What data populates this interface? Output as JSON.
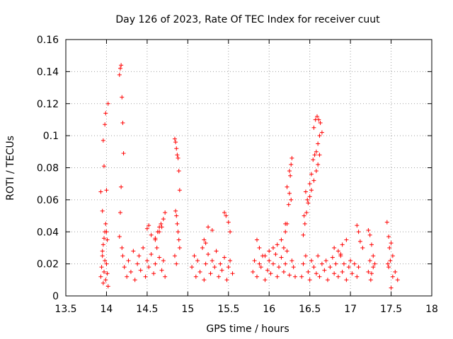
{
  "chart_data": {
    "type": "scatter",
    "title": "Day 126 of 2023, Rate Of TEC Index for receiver cuut",
    "xlabel": "GPS time / hours",
    "ylabel": "ROTI / TECUs",
    "xlim": [
      13.5,
      18
    ],
    "ylim": [
      0,
      0.16
    ],
    "xticks": [
      "13.5",
      "14",
      "14.5",
      "15",
      "15.5",
      "16",
      "16.5",
      "17",
      "17.5",
      "18"
    ],
    "yticks": [
      "0",
      "0.02",
      "0.04",
      "0.06",
      "0.08",
      "0.1",
      "0.12",
      "0.14",
      "0.16"
    ],
    "grid": true,
    "marker": "plus",
    "color": "#ff0000",
    "series": [
      {
        "name": "ROTI",
        "x": [
          13.93,
          13.94,
          13.95,
          13.96,
          13.97,
          13.98,
          13.99,
          14.0,
          14.01,
          14.02,
          13.95,
          13.96,
          13.97,
          13.98,
          13.99,
          14.0,
          14.01,
          13.93,
          13.95,
          14.0,
          13.97,
          13.96,
          13.98,
          13.99,
          14.02,
          14.18,
          14.17,
          14.16,
          14.19,
          14.2,
          14.21,
          14.18,
          14.17,
          14.16,
          14.19,
          14.2,
          14.22,
          14.25,
          14.27,
          14.3,
          14.33,
          14.35,
          14.38,
          14.4,
          14.42,
          14.45,
          14.48,
          14.5,
          14.52,
          14.55,
          14.58,
          14.6,
          14.62,
          14.65,
          14.68,
          14.7,
          14.72,
          14.6,
          14.63,
          14.65,
          14.67,
          14.7,
          14.72,
          14.5,
          14.52,
          14.55,
          14.6,
          14.65,
          14.68,
          14.84,
          14.85,
          14.86,
          14.87,
          14.88,
          14.89,
          14.9,
          14.85,
          14.86,
          14.87,
          14.88,
          14.89,
          14.9,
          14.84,
          14.86,
          15.05,
          15.08,
          15.1,
          15.12,
          15.15,
          15.18,
          15.2,
          15.22,
          15.25,
          15.28,
          15.3,
          15.33,
          15.35,
          15.38,
          15.4,
          15.42,
          15.45,
          15.48,
          15.5,
          15.52,
          15.55,
          15.2,
          15.22,
          15.25,
          15.3,
          15.45,
          15.47,
          15.5,
          15.52,
          15.8,
          15.82,
          15.85,
          15.88,
          15.9,
          15.92,
          15.95,
          15.98,
          16.0,
          16.02,
          16.05,
          16.08,
          16.1,
          16.12,
          16.15,
          16.18,
          16.2,
          16.22,
          16.25,
          16.28,
          16.3,
          16.32,
          15.85,
          15.88,
          15.95,
          16.0,
          16.05,
          16.1,
          16.15,
          16.2,
          16.22,
          16.24,
          16.25,
          16.26,
          16.27,
          16.28,
          16.22,
          16.25,
          16.27,
          16.18,
          16.2,
          16.4,
          16.42,
          16.45,
          16.48,
          16.5,
          16.52,
          16.55,
          16.58,
          16.6,
          16.62,
          16.65,
          16.68,
          16.7,
          16.72,
          16.75,
          16.78,
          16.8,
          16.82,
          16.85,
          16.88,
          16.9,
          16.92,
          16.95,
          16.98,
          17.0,
          17.02,
          17.05,
          17.08,
          17.1,
          16.43,
          16.45,
          16.47,
          16.5,
          16.52,
          16.54,
          16.56,
          16.58,
          16.6,
          16.62,
          16.55,
          16.57,
          16.59,
          16.61,
          16.63,
          16.65,
          16.42,
          16.44,
          16.46,
          16.48,
          16.5,
          16.52,
          16.55,
          16.58,
          16.6,
          16.62,
          16.8,
          16.85,
          16.88,
          16.9,
          16.95,
          17.08,
          17.1,
          17.12,
          17.15,
          17.22,
          17.24,
          17.26,
          17.28,
          17.3,
          17.22,
          17.25,
          17.28,
          17.24,
          17.26,
          17.45,
          17.47,
          17.5,
          17.52,
          17.55,
          17.58,
          17.46,
          17.48,
          17.5,
          17.52,
          17.47,
          17.49
        ],
        "y": [
          0.012,
          0.018,
          0.025,
          0.008,
          0.015,
          0.022,
          0.01,
          0.02,
          0.014,
          0.006,
          0.028,
          0.032,
          0.036,
          0.04,
          0.045,
          0.04,
          0.035,
          0.065,
          0.053,
          0.066,
          0.081,
          0.097,
          0.107,
          0.114,
          0.12,
          0.144,
          0.142,
          0.138,
          0.124,
          0.108,
          0.089,
          0.068,
          0.052,
          0.037,
          0.03,
          0.025,
          0.018,
          0.012,
          0.022,
          0.015,
          0.028,
          0.01,
          0.02,
          0.025,
          0.016,
          0.03,
          0.012,
          0.022,
          0.018,
          0.026,
          0.014,
          0.02,
          0.03,
          0.024,
          0.016,
          0.022,
          0.012,
          0.035,
          0.04,
          0.043,
          0.045,
          0.048,
          0.052,
          0.042,
          0.044,
          0.038,
          0.036,
          0.04,
          0.043,
          0.098,
          0.096,
          0.092,
          0.088,
          0.086,
          0.078,
          0.066,
          0.053,
          0.05,
          0.045,
          0.04,
          0.035,
          0.03,
          0.025,
          0.02,
          0.018,
          0.025,
          0.012,
          0.022,
          0.015,
          0.03,
          0.01,
          0.02,
          0.026,
          0.014,
          0.022,
          0.018,
          0.028,
          0.012,
          0.02,
          0.016,
          0.024,
          0.01,
          0.018,
          0.022,
          0.014,
          0.035,
          0.033,
          0.043,
          0.041,
          0.052,
          0.05,
          0.046,
          0.04,
          0.015,
          0.022,
          0.012,
          0.02,
          0.018,
          0.025,
          0.01,
          0.016,
          0.022,
          0.014,
          0.02,
          0.026,
          0.012,
          0.018,
          0.024,
          0.015,
          0.02,
          0.028,
          0.013,
          0.022,
          0.018,
          0.012,
          0.035,
          0.03,
          0.025,
          0.028,
          0.03,
          0.032,
          0.035,
          0.04,
          0.045,
          0.057,
          0.064,
          0.075,
          0.082,
          0.086,
          0.068,
          0.078,
          0.06,
          0.03,
          0.045,
          0.012,
          0.02,
          0.025,
          0.015,
          0.01,
          0.022,
          0.018,
          0.014,
          0.025,
          0.012,
          0.02,
          0.016,
          0.022,
          0.01,
          0.018,
          0.024,
          0.014,
          0.02,
          0.012,
          0.026,
          0.015,
          0.02,
          0.01,
          0.018,
          0.022,
          0.014,
          0.02,
          0.012,
          0.018,
          0.05,
          0.065,
          0.06,
          0.07,
          0.076,
          0.085,
          0.088,
          0.09,
          0.095,
          0.1,
          0.105,
          0.11,
          0.112,
          0.11,
          0.108,
          0.102,
          0.038,
          0.045,
          0.052,
          0.058,
          0.062,
          0.066,
          0.072,
          0.078,
          0.082,
          0.088,
          0.03,
          0.028,
          0.025,
          0.032,
          0.035,
          0.044,
          0.04,
          0.034,
          0.03,
          0.041,
          0.038,
          0.032,
          0.025,
          0.02,
          0.015,
          0.01,
          0.018,
          0.022,
          0.014,
          0.046,
          0.037,
          0.033,
          0.025,
          0.015,
          0.01,
          0.02,
          0.03,
          0.005,
          0.012,
          0.018,
          0.022
        ]
      }
    ]
  }
}
